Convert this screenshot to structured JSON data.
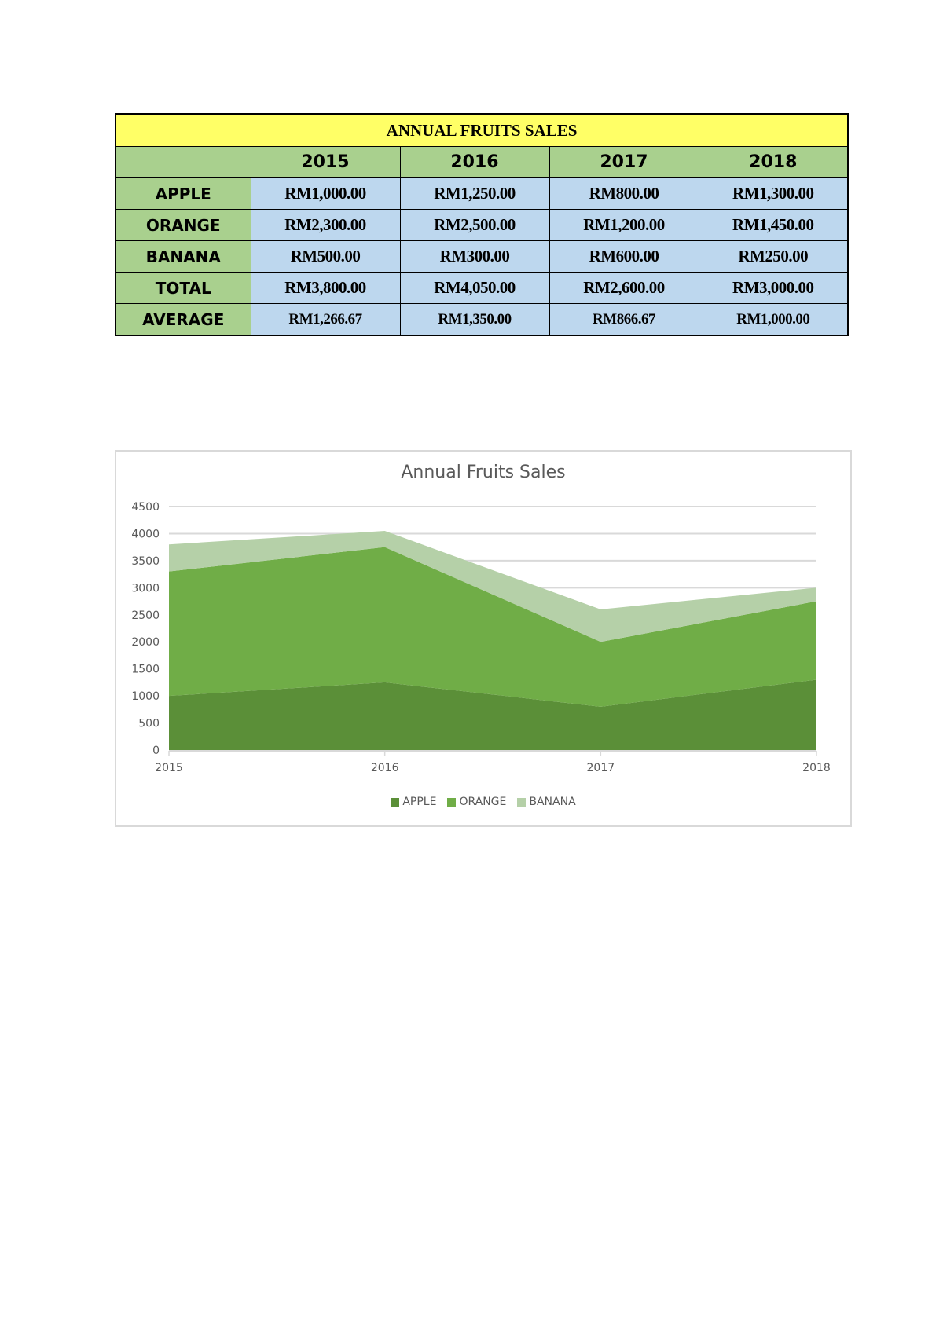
{
  "table": {
    "title": "ANNUAL FRUITS SALES",
    "columns": [
      "",
      "2015",
      "2016",
      "2017",
      "2018"
    ],
    "rows": [
      {
        "label": "APPLE",
        "values": [
          "RM1,000.00",
          "RM1,250.00",
          "RM800.00",
          "RM1,300.00"
        ]
      },
      {
        "label": "ORANGE",
        "values": [
          "RM2,300.00",
          "RM2,500.00",
          "RM1,200.00",
          "RM1,450.00"
        ]
      },
      {
        "label": "BANANA",
        "values": [
          "RM500.00",
          "RM300.00",
          "RM600.00",
          "RM250.00"
        ]
      },
      {
        "label": "TOTAL",
        "values": [
          "RM3,800.00",
          "RM4,050.00",
          "RM2,600.00",
          "RM3,000.00"
        ]
      },
      {
        "label": "AVERAGE",
        "values": [
          "RM1,266.67",
          "RM1,350.00",
          "RM866.67",
          "RM1,000.00"
        ]
      }
    ],
    "colors": {
      "title_bg": "#ffff66",
      "header_bg": "#a9d08e",
      "value_bg": "#bdd7ee"
    }
  },
  "chart": {
    "title": "Annual Fruits Sales",
    "legend": [
      {
        "label": "APPLE",
        "color": "#5b8f38"
      },
      {
        "label": "ORANGE",
        "color": "#70ad47"
      },
      {
        "label": "BANANA",
        "color": "#b5d0a8"
      }
    ]
  },
  "chart_data": {
    "type": "area",
    "stacked": true,
    "title": "Annual Fruits Sales",
    "xlabel": "",
    "ylabel": "",
    "categories": [
      "2015",
      "2016",
      "2017",
      "2018"
    ],
    "series": [
      {
        "name": "APPLE",
        "values": [
          1000,
          1250,
          800,
          1300
        ],
        "color": "#5b8f38"
      },
      {
        "name": "ORANGE",
        "values": [
          2300,
          2500,
          1200,
          1450
        ],
        "color": "#70ad47"
      },
      {
        "name": "BANANA",
        "values": [
          500,
          300,
          600,
          250
        ],
        "color": "#b5d0a8"
      }
    ],
    "ylim": [
      0,
      4500
    ],
    "yticks": [
      0,
      500,
      1000,
      1500,
      2000,
      2500,
      3000,
      3500,
      4000,
      4500
    ],
    "grid": true,
    "legend_position": "bottom"
  }
}
